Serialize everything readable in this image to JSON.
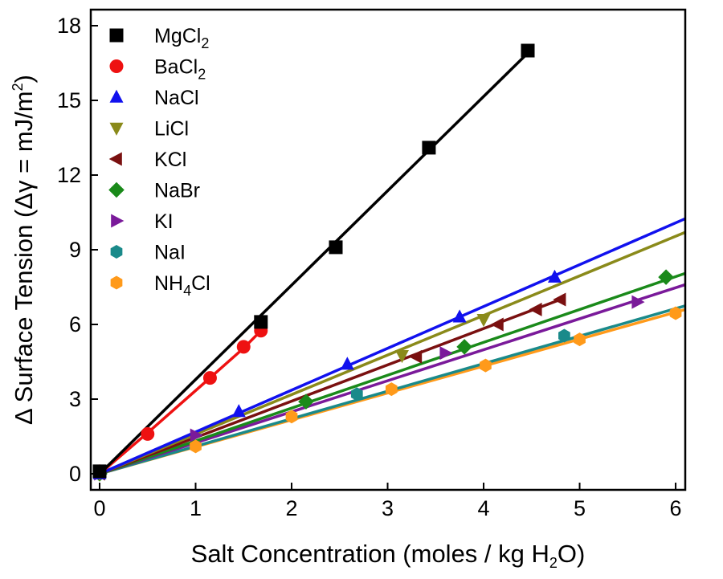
{
  "chart_data": {
    "type": "scatter",
    "xlabel": {
      "pre": "Salt Concentration (moles / kg H",
      "sub": "2",
      "post": "O)"
    },
    "ylabel": {
      "pre": "Δ Surface Tension (Δγ = mJ/m",
      "sup": "2",
      "post": ")"
    },
    "xlim": [
      0,
      6.1
    ],
    "ylim": [
      0,
      18.5
    ],
    "xticks": [
      0,
      1,
      2,
      3,
      4,
      5,
      6
    ],
    "yticks": [
      0,
      3,
      6,
      9,
      12,
      15,
      18
    ],
    "legend_position": "top-left",
    "series": [
      {
        "key": "mgcl2",
        "name": "MgCl",
        "name_sub": "2",
        "marker": "square",
        "color": "#000000",
        "x": [
          0,
          1.68,
          2.46,
          3.43,
          4.46
        ],
        "y": [
          0.1,
          6.1,
          9.1,
          13.1,
          17.0
        ],
        "fit": [
          [
            0,
            0
          ],
          [
            4.46,
            16.9
          ]
        ]
      },
      {
        "key": "bacl2",
        "name": "BaCl",
        "name_sub": "2",
        "marker": "circle",
        "color": "#ee1111",
        "x": [
          0,
          0.5,
          1.15,
          1.5,
          1.68
        ],
        "y": [
          0.1,
          1.6,
          3.85,
          5.1,
          5.75
        ],
        "fit": [
          [
            0,
            0
          ],
          [
            0.5,
            1.65
          ],
          [
            1.15,
            3.85
          ],
          [
            1.5,
            5.05
          ],
          [
            1.68,
            5.75
          ]
        ]
      },
      {
        "key": "nacl",
        "name": "NaCl",
        "name_sub": "",
        "marker": "triangle-up",
        "color": "#1111ee",
        "x": [
          0,
          1.45,
          2.58,
          3.75,
          4.74
        ],
        "y": [
          0,
          2.5,
          4.4,
          6.3,
          7.9
        ],
        "fit": [
          [
            0,
            0
          ],
          [
            6.1,
            10.25
          ]
        ]
      },
      {
        "key": "licl",
        "name": "LiCl",
        "name_sub": "",
        "marker": "triangle-down",
        "color": "#8a8a1a",
        "x": [
          0,
          3.15,
          4.0
        ],
        "y": [
          0,
          4.75,
          6.2
        ],
        "fit": [
          [
            0,
            0
          ],
          [
            6.1,
            9.7
          ]
        ]
      },
      {
        "key": "kcl",
        "name": "KCl",
        "name_sub": "",
        "marker": "triangle-left",
        "color": "#7a1010",
        "x": [
          0,
          3.3,
          4.15,
          4.55,
          4.8
        ],
        "y": [
          0,
          4.7,
          6.0,
          6.6,
          7.0
        ],
        "fit": [
          [
            0,
            0
          ],
          [
            4.8,
            7.0
          ]
        ]
      },
      {
        "key": "nabr",
        "name": "NaBr",
        "name_sub": "",
        "marker": "diamond",
        "color": "#1a8a1a",
        "x": [
          0,
          2.15,
          3.8,
          5.9
        ],
        "y": [
          0,
          2.9,
          5.1,
          7.9
        ],
        "fit": [
          [
            0,
            0
          ],
          [
            6.1,
            8.05
          ]
        ]
      },
      {
        "key": "ki",
        "name": "KI",
        "name_sub": "",
        "marker": "triangle-right",
        "color": "#7a1a9a",
        "x": [
          0,
          1.0,
          3.6,
          5.6
        ],
        "y": [
          0,
          1.55,
          4.85,
          6.9
        ],
        "fit": [
          [
            0,
            0
          ],
          [
            6.1,
            7.6
          ]
        ]
      },
      {
        "key": "nai",
        "name": "NaI",
        "name_sub": "",
        "marker": "hexagon",
        "color": "#1a8a8a",
        "x": [
          0,
          2.68,
          4.84
        ],
        "y": [
          0,
          3.2,
          5.55
        ],
        "fit": [
          [
            0,
            0
          ],
          [
            6.1,
            6.75
          ]
        ]
      },
      {
        "key": "nh4cl",
        "name": "NH",
        "name_sub": "4",
        "name_post": "Cl",
        "marker": "hexagon",
        "color": "#ff9a1a",
        "x": [
          0,
          1.0,
          2.0,
          3.04,
          4.02,
          5.0,
          6.0
        ],
        "y": [
          0,
          1.1,
          2.3,
          3.4,
          4.35,
          5.4,
          6.45
        ],
        "fit": [
          [
            0,
            0
          ],
          [
            6.1,
            6.6
          ]
        ]
      }
    ]
  }
}
